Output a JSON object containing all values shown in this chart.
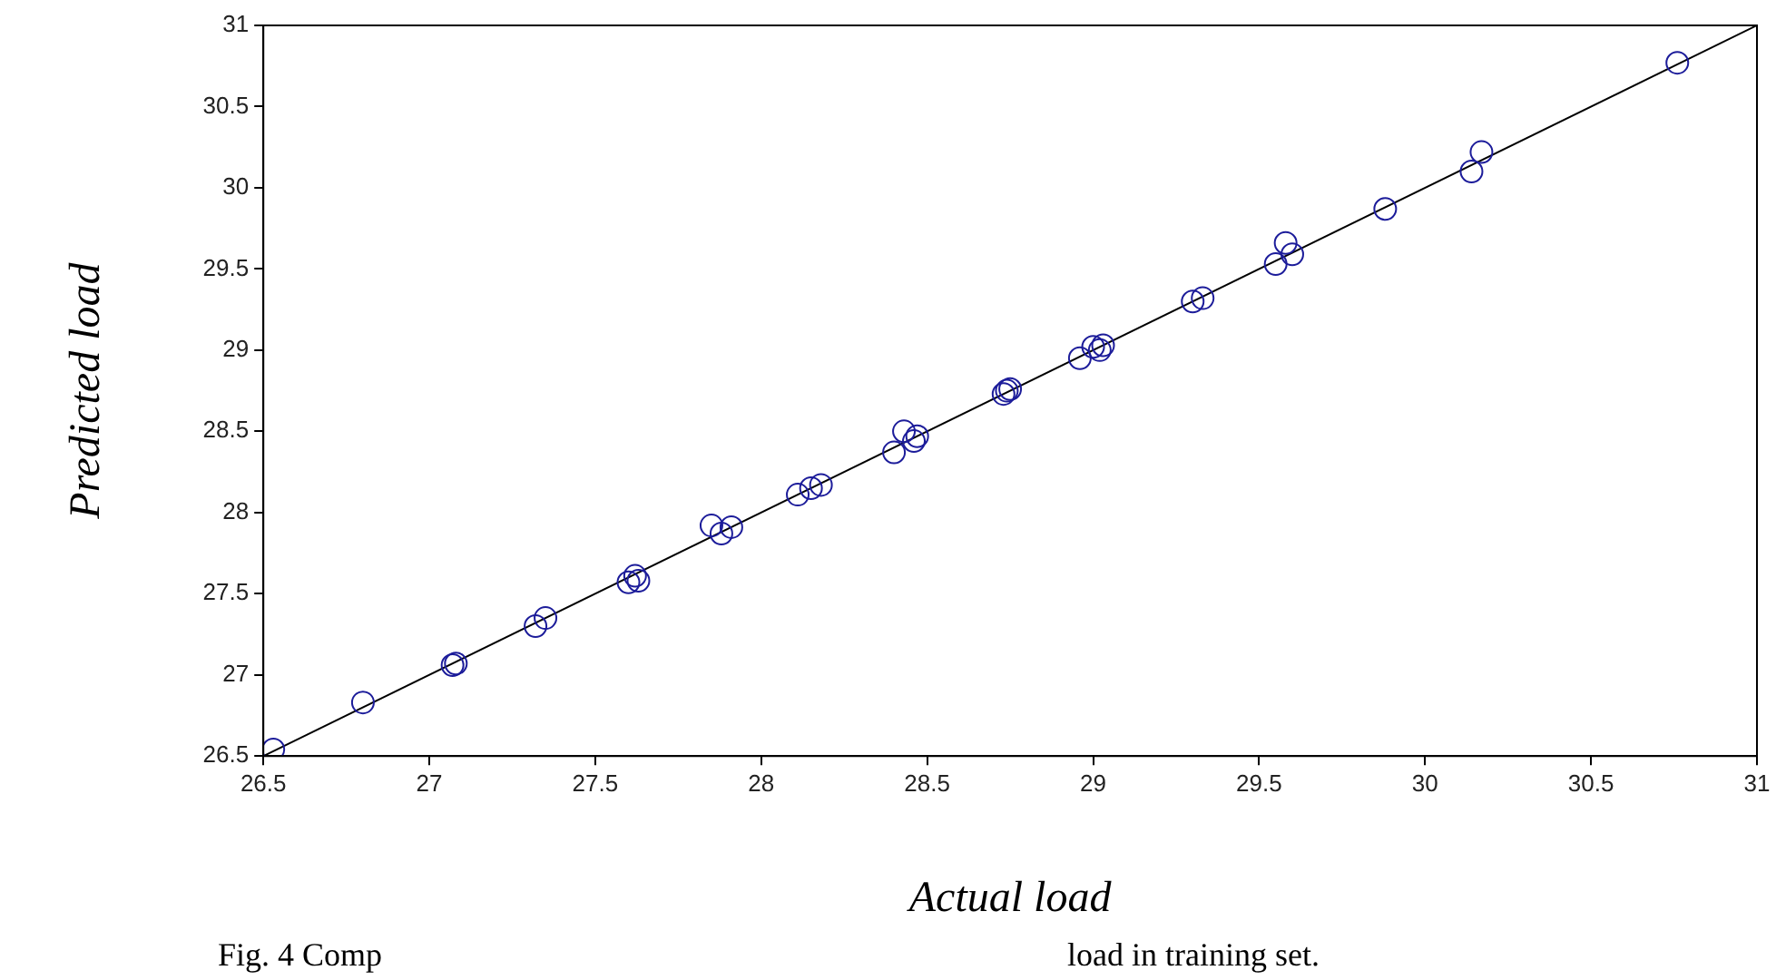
{
  "chart_data": {
    "type": "scatter",
    "xlabel": "Actual load",
    "ylabel": "Predicted load",
    "annotations": [
      "Fig. 4 Comp",
      "load in training set."
    ],
    "xlim": [
      26.5,
      31
    ],
    "xticks": [
      26.5,
      27,
      27.5,
      28,
      28.5,
      29,
      29.5,
      30,
      30.5,
      31
    ],
    "ylim": [
      26.5,
      31
    ],
    "yticks": [
      26.5,
      27,
      27.5,
      28,
      28.5,
      29,
      29.5,
      30,
      30.5,
      31
    ],
    "grid": false,
    "marker": "circle",
    "series": [
      {
        "color": "#1c1c9a",
        "x": [
          26.53,
          26.8,
          27.07,
          27.08,
          27.32,
          27.35,
          27.6,
          27.62,
          27.63,
          27.85,
          27.88,
          27.91,
          28.11,
          28.15,
          28.18,
          28.4,
          28.43,
          28.46,
          28.47,
          28.73,
          28.75,
          28.74,
          28.96,
          29.0,
          29.03,
          29.02,
          29.3,
          29.33,
          29.55,
          29.58,
          29.6,
          29.88,
          30.14,
          30.17,
          30.76
        ],
        "values": [
          26.54,
          26.83,
          27.06,
          27.07,
          27.3,
          27.35,
          27.57,
          27.61,
          27.58,
          27.92,
          27.87,
          27.91,
          28.11,
          28.15,
          28.17,
          28.37,
          28.5,
          28.44,
          28.47,
          28.73,
          28.76,
          28.75,
          28.95,
          29.02,
          29.03,
          29.0,
          29.3,
          29.32,
          29.53,
          29.66,
          29.59,
          29.87,
          30.1,
          30.22,
          30.77
        ]
      },
      {
        "type": "line",
        "color": "#000000",
        "marker": "none",
        "x": [
          26.5,
          31
        ],
        "values": [
          26.5,
          31
        ]
      }
    ]
  }
}
